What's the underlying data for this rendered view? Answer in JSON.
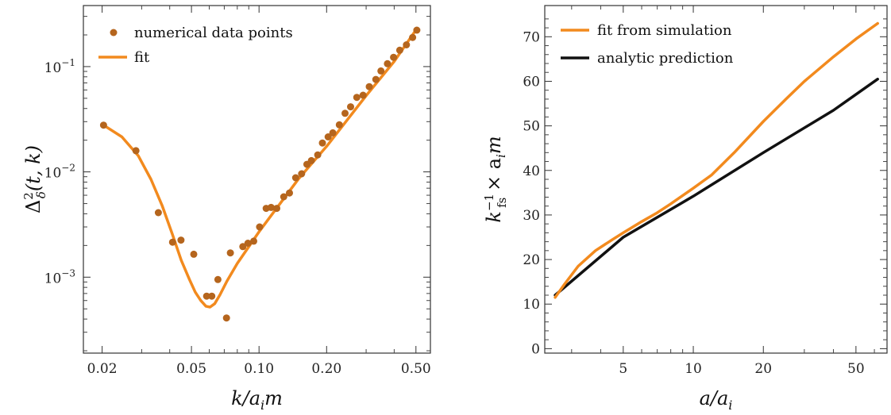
{
  "chart_data": [
    {
      "type": "scatter",
      "xscale": "log",
      "yscale": "log",
      "xlim": [
        0.0165,
        0.58
      ],
      "ylim": [
        0.00019,
        0.38
      ],
      "xlabel": "k/a_i m",
      "ylabel": "Δ_δ^2(t, k)",
      "xticks": [
        {
          "value": 0.02,
          "label": "0.02"
        },
        {
          "value": 0.05,
          "label": "0.05"
        },
        {
          "value": 0.1,
          "label": "0.10"
        },
        {
          "value": 0.2,
          "label": "0.20"
        },
        {
          "value": 0.5,
          "label": "0.50"
        }
      ],
      "yticks": [
        {
          "value": 0.001,
          "base": "10",
          "exp": "−3"
        },
        {
          "value": 0.01,
          "base": "10",
          "exp": "−2"
        },
        {
          "value": 0.1,
          "base": "10",
          "exp": "−1"
        }
      ],
      "legend_position": "top-left",
      "series": [
        {
          "name": "numerical data points",
          "kind": "points",
          "color": "#b5651d",
          "points": [
            [
              0.0203,
              0.0278
            ],
            [
              0.0283,
              0.0159
            ],
            [
              0.0356,
              0.0041
            ],
            [
              0.0412,
              0.00215
            ],
            [
              0.0449,
              0.00225
            ],
            [
              0.0512,
              0.00165
            ],
            [
              0.0584,
              0.00066
            ],
            [
              0.0616,
              0.00066
            ],
            [
              0.0656,
              0.00095
            ],
            [
              0.0716,
              0.00041
            ],
            [
              0.0745,
              0.0017
            ],
            [
              0.0847,
              0.00195
            ],
            [
              0.0892,
              0.0021
            ],
            [
              0.0947,
              0.0022
            ],
            [
              0.1006,
              0.003
            ],
            [
              0.1076,
              0.0045
            ],
            [
              0.1132,
              0.0046
            ],
            [
              0.1199,
              0.0045
            ],
            [
              0.1288,
              0.0058
            ],
            [
              0.1366,
              0.0063
            ],
            [
              0.1456,
              0.0088
            ],
            [
              0.1547,
              0.0096
            ],
            [
              0.1634,
              0.0118
            ],
            [
              0.1711,
              0.0128
            ],
            [
              0.1825,
              0.0145
            ],
            [
              0.1915,
              0.0188
            ],
            [
              0.2031,
              0.0215
            ],
            [
              0.2132,
              0.0235
            ],
            [
              0.2279,
              0.028
            ],
            [
              0.2417,
              0.036
            ],
            [
              0.2559,
              0.0415
            ],
            [
              0.2726,
              0.051
            ],
            [
              0.2907,
              0.0535
            ],
            [
              0.3097,
              0.0645
            ],
            [
              0.3313,
              0.0755
            ],
            [
              0.3491,
              0.091
            ],
            [
              0.3732,
              0.1065
            ],
            [
              0.3975,
              0.1225
            ],
            [
              0.4235,
              0.143
            ],
            [
              0.4536,
              0.161
            ],
            [
              0.4831,
              0.189
            ],
            [
              0.5047,
              0.222
            ]
          ]
        },
        {
          "name": "fit",
          "kind": "line",
          "color": "#f28a1e",
          "points": [
            [
              0.0203,
              0.0278
            ],
            [
              0.0245,
              0.0215
            ],
            [
              0.029,
              0.0142
            ],
            [
              0.033,
              0.0085
            ],
            [
              0.037,
              0.0048
            ],
            [
              0.041,
              0.0026
            ],
            [
              0.045,
              0.00145
            ],
            [
              0.049,
              0.00095
            ],
            [
              0.052,
              0.00072
            ],
            [
              0.055,
              0.0006
            ],
            [
              0.058,
              0.00053
            ],
            [
              0.0605,
              0.00052
            ],
            [
              0.0635,
              0.00056
            ],
            [
              0.067,
              0.00068
            ],
            [
              0.072,
              0.00092
            ],
            [
              0.08,
              0.00135
            ],
            [
              0.1,
              0.0027
            ],
            [
              0.15,
              0.0086
            ],
            [
              0.2,
              0.0175
            ],
            [
              0.3,
              0.053
            ],
            [
              0.4,
              0.112
            ],
            [
              0.5,
              0.223
            ]
          ]
        }
      ]
    },
    {
      "type": "line",
      "xscale": "log",
      "yscale": "linear",
      "xlim": [
        2.3,
        68
      ],
      "ylim": [
        -1,
        77
      ],
      "xlabel": "a/a_i",
      "ylabel": "k_fs^−1 × a_i m",
      "xticks": [
        {
          "value": 5,
          "label": "5"
        },
        {
          "value": 10,
          "label": "10"
        },
        {
          "value": 20,
          "label": "20"
        },
        {
          "value": 50,
          "label": "50"
        }
      ],
      "yticks": [
        {
          "value": 0,
          "label": "0"
        },
        {
          "value": 10,
          "label": "10"
        },
        {
          "value": 20,
          "label": "20"
        },
        {
          "value": 30,
          "label": "30"
        },
        {
          "value": 40,
          "label": "40"
        },
        {
          "value": 50,
          "label": "50"
        },
        {
          "value": 60,
          "label": "60"
        },
        {
          "value": 70,
          "label": "70"
        }
      ],
      "legend_position": "top-left",
      "series": [
        {
          "name": "fit from simulation",
          "color": "#f28a1e",
          "points": [
            [
              2.55,
              11.5
            ],
            [
              2.8,
              14.5
            ],
            [
              3.2,
              18.5
            ],
            [
              3.8,
              22.0
            ],
            [
              4.5,
              24.5
            ],
            [
              5.0,
              26.0
            ],
            [
              6.0,
              28.5
            ],
            [
              7.0,
              30.5
            ],
            [
              8.0,
              32.5
            ],
            [
              10.0,
              36.0
            ],
            [
              12.0,
              39.0
            ],
            [
              15.0,
              44.0
            ],
            [
              20.0,
              51.0
            ],
            [
              25.0,
              56.0
            ],
            [
              30.0,
              60.0
            ],
            [
              40.0,
              65.5
            ],
            [
              50.0,
              69.5
            ],
            [
              62.0,
              73.0
            ]
          ]
        },
        {
          "name": "analytic prediction",
          "color": "#111111",
          "points": [
            [
              2.55,
              12.0
            ],
            [
              5.0,
              25.0
            ],
            [
              10.0,
              34.2
            ],
            [
              20.0,
              44.0
            ],
            [
              40.0,
              53.5
            ],
            [
              62.0,
              60.5
            ]
          ]
        }
      ]
    }
  ]
}
